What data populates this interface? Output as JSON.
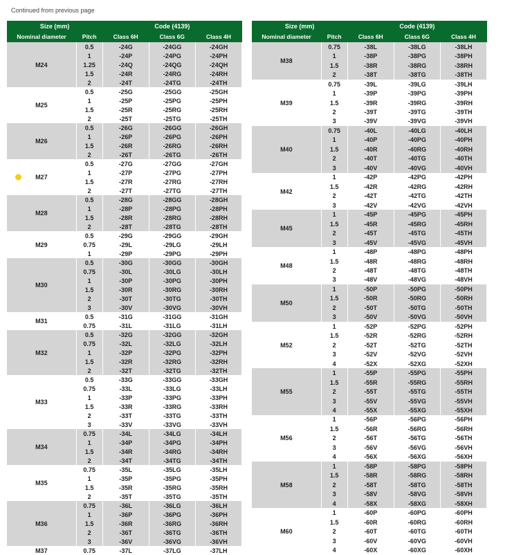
{
  "continued_text": "Continued from previous page",
  "header": {
    "size_group": "Size (mm)",
    "code_group": "Code (4139)",
    "cols": [
      "Nominal diameter",
      "Pitch",
      "Class 6H",
      "Class 6G",
      "Class 4H"
    ]
  },
  "colors": {
    "header_bg": "#0a6b2f",
    "band_light": "#ffffff",
    "band_dark": "#d4d4d4",
    "highlight_dot": "#f7cc1a"
  },
  "left": [
    {
      "dia": "M24",
      "shade": "dark",
      "rows": [
        {
          "p": "0.5",
          "c": [
            "-24G",
            "-24GG",
            "-24GH"
          ]
        },
        {
          "p": "1",
          "c": [
            "-24P",
            "-24PG",
            "-24PH"
          ]
        },
        {
          "p": "1.25",
          "c": [
            "-24Q",
            "-24QG",
            "-24QH"
          ]
        },
        {
          "p": "1.5",
          "c": [
            "-24R",
            "-24RG",
            "-24RH"
          ]
        },
        {
          "p": "2",
          "c": [
            "-24T",
            "-24TG",
            "-24TH"
          ]
        }
      ]
    },
    {
      "dia": "M25",
      "shade": "light",
      "rows": [
        {
          "p": "0.5",
          "c": [
            "-25G",
            "-25GG",
            "-25GH"
          ]
        },
        {
          "p": "1",
          "c": [
            "-25P",
            "-25PG",
            "-25PH"
          ]
        },
        {
          "p": "1.5",
          "c": [
            "-25R",
            "-25RG",
            "-25RH"
          ]
        },
        {
          "p": "2",
          "c": [
            "-25T",
            "-25TG",
            "-25TH"
          ]
        }
      ]
    },
    {
      "dia": "M26",
      "shade": "dark",
      "rows": [
        {
          "p": "0.5",
          "c": [
            "-26G",
            "-26GG",
            "-26GH"
          ]
        },
        {
          "p": "1",
          "c": [
            "-26P",
            "-26PG",
            "-26PH"
          ]
        },
        {
          "p": "1.5",
          "c": [
            "-26R",
            "-26RG",
            "-26RH"
          ]
        },
        {
          "p": "2",
          "c": [
            "-26T",
            "-26TG",
            "-26TH"
          ]
        }
      ]
    },
    {
      "dia": "M27",
      "shade": "light",
      "dot": true,
      "rows": [
        {
          "p": "0.5",
          "c": [
            "-27G",
            "-27GG",
            "-27GH"
          ]
        },
        {
          "p": "1",
          "c": [
            "-27P",
            "-27PG",
            "-27PH"
          ]
        },
        {
          "p": "1.5",
          "c": [
            "-27R",
            "-27RG",
            "-27RH"
          ]
        },
        {
          "p": "2",
          "c": [
            "-27T",
            "-27TG",
            "-27TH"
          ]
        }
      ]
    },
    {
      "dia": "M28",
      "shade": "dark",
      "rows": [
        {
          "p": "0.5",
          "c": [
            "-28G",
            "-28GG",
            "-28GH"
          ]
        },
        {
          "p": "1",
          "c": [
            "-28P",
            "-28PG",
            "-28PH"
          ]
        },
        {
          "p": "1.5",
          "c": [
            "-28R",
            "-28RG",
            "-28RH"
          ]
        },
        {
          "p": "2",
          "c": [
            "-28T",
            "-28TG",
            "-28TH"
          ]
        }
      ]
    },
    {
      "dia": "M29",
      "shade": "light",
      "rows": [
        {
          "p": "0.5",
          "c": [
            "-29G",
            "-29GG",
            "-29GH"
          ]
        },
        {
          "p": "0.75",
          "c": [
            "-29L",
            "-29LG",
            "-29LH"
          ]
        },
        {
          "p": "1",
          "c": [
            "-29P",
            "-29PG",
            "-29PH"
          ]
        }
      ]
    },
    {
      "dia": "M30",
      "shade": "dark",
      "rows": [
        {
          "p": "0.5",
          "c": [
            "-30G",
            "-30GG",
            "-30GH"
          ]
        },
        {
          "p": "0.75",
          "c": [
            "-30L",
            "-30LG",
            "-30LH"
          ]
        },
        {
          "p": "1",
          "c": [
            "-30P",
            "-30PG",
            "-30PH"
          ]
        },
        {
          "p": "1.5",
          "c": [
            "-30R",
            "-30RG",
            "-30RH"
          ]
        },
        {
          "p": "2",
          "c": [
            "-30T",
            "-30TG",
            "-30TH"
          ]
        },
        {
          "p": "3",
          "c": [
            "-30V",
            "-30VG",
            "-30VH"
          ]
        }
      ]
    },
    {
      "dia": "M31",
      "shade": "light",
      "rows": [
        {
          "p": "0.5",
          "c": [
            "-31G",
            "-31GG",
            "-31GH"
          ]
        },
        {
          "p": "0.75",
          "c": [
            "-31L",
            "-31LG",
            "-31LH"
          ]
        }
      ]
    },
    {
      "dia": "M32",
      "shade": "dark",
      "rows": [
        {
          "p": "0.5",
          "c": [
            "-32G",
            "-32GG",
            "-32GH"
          ]
        },
        {
          "p": "0.75",
          "c": [
            "-32L",
            "-32LG",
            "-32LH"
          ]
        },
        {
          "p": "1",
          "c": [
            "-32P",
            "-32PG",
            "-32PH"
          ]
        },
        {
          "p": "1.5",
          "c": [
            "-32R",
            "-32RG",
            "-32RH"
          ]
        },
        {
          "p": "2",
          "c": [
            "-32T",
            "-32TG",
            "-32TH"
          ]
        }
      ]
    },
    {
      "dia": "M33",
      "shade": "light",
      "rows": [
        {
          "p": "0.5",
          "c": [
            "-33G",
            "-33GG",
            "-33GH"
          ]
        },
        {
          "p": "0.75",
          "c": [
            "-33L",
            "-33LG",
            "-33LH"
          ]
        },
        {
          "p": "1",
          "c": [
            "-33P",
            "-33PG",
            "-33PH"
          ]
        },
        {
          "p": "1.5",
          "c": [
            "-33R",
            "-33RG",
            "-33RH"
          ]
        },
        {
          "p": "2",
          "c": [
            "-33T",
            "-33TG",
            "-33TH"
          ]
        },
        {
          "p": "3",
          "c": [
            "-33V",
            "-33VG",
            "-33VH"
          ]
        }
      ]
    },
    {
      "dia": "M34",
      "shade": "dark",
      "rows": [
        {
          "p": "0.75",
          "c": [
            "-34L",
            "-34LG",
            "-34LH"
          ]
        },
        {
          "p": "1",
          "c": [
            "-34P",
            "-34PG",
            "-34PH"
          ]
        },
        {
          "p": "1.5",
          "c": [
            "-34R",
            "-34RG",
            "-34RH"
          ]
        },
        {
          "p": "2",
          "c": [
            "-34T",
            "-34TG",
            "-34TH"
          ]
        }
      ]
    },
    {
      "dia": "M35",
      "shade": "light",
      "rows": [
        {
          "p": "0.75",
          "c": [
            "-35L",
            "-35LG",
            "-35LH"
          ]
        },
        {
          "p": "1",
          "c": [
            "-35P",
            "-35PG",
            "-35PH"
          ]
        },
        {
          "p": "1.5",
          "c": [
            "-35R",
            "-35RG",
            "-35RH"
          ]
        },
        {
          "p": "2",
          "c": [
            "-35T",
            "-35TG",
            "-35TH"
          ]
        }
      ]
    },
    {
      "dia": "M36",
      "shade": "dark",
      "rows": [
        {
          "p": "0.75",
          "c": [
            "-36L",
            "-36LG",
            "-36LH"
          ]
        },
        {
          "p": "1",
          "c": [
            "-36P",
            "-36PG",
            "-36PH"
          ]
        },
        {
          "p": "1.5",
          "c": [
            "-36R",
            "-36RG",
            "-36RH"
          ]
        },
        {
          "p": "2",
          "c": [
            "-36T",
            "-36TG",
            "-36TH"
          ]
        },
        {
          "p": "3",
          "c": [
            "-36V",
            "-36VG",
            "-36VH"
          ]
        }
      ]
    },
    {
      "dia": "M37",
      "shade": "light",
      "rows": [
        {
          "p": "0.75",
          "c": [
            "-37L",
            "-37LG",
            "-37LH"
          ]
        }
      ]
    }
  ],
  "right": [
    {
      "dia": "M38",
      "shade": "dark",
      "rows": [
        {
          "p": "0.75",
          "c": [
            "-38L",
            "-38LG",
            "-38LH"
          ]
        },
        {
          "p": "1",
          "c": [
            "-38P",
            "-38PG",
            "-38PH"
          ]
        },
        {
          "p": "1.5",
          "c": [
            "-38R",
            "-38RG",
            "-38RH"
          ]
        },
        {
          "p": "2",
          "c": [
            "-38T",
            "-38TG",
            "-38TH"
          ]
        }
      ]
    },
    {
      "dia": "M39",
      "shade": "light",
      "rows": [
        {
          "p": "0.75",
          "c": [
            "-39L",
            "-39LG",
            "-39LH"
          ]
        },
        {
          "p": "1",
          "c": [
            "-39P",
            "-39PG",
            "-39PH"
          ]
        },
        {
          "p": "1.5",
          "c": [
            "-39R",
            "-39RG",
            "-39RH"
          ]
        },
        {
          "p": "2",
          "c": [
            "-39T",
            "-39TG",
            "-39TH"
          ]
        },
        {
          "p": "3",
          "c": [
            "-39V",
            "-39VG",
            "-39VH"
          ]
        }
      ]
    },
    {
      "dia": "M40",
      "shade": "dark",
      "rows": [
        {
          "p": "0.75",
          "c": [
            "-40L",
            "-40LG",
            "-40LH"
          ]
        },
        {
          "p": "1",
          "c": [
            "-40P",
            "-40PG",
            "-40PH"
          ]
        },
        {
          "p": "1.5",
          "c": [
            "-40R",
            "-40RG",
            "-40RH"
          ]
        },
        {
          "p": "2",
          "c": [
            "-40T",
            "-40TG",
            "-40TH"
          ]
        },
        {
          "p": "3",
          "c": [
            "-40V",
            "-40VG",
            "-40VH"
          ]
        }
      ]
    },
    {
      "dia": "M42",
      "shade": "light",
      "rows": [
        {
          "p": "1",
          "c": [
            "-42P",
            "-42PG",
            "-42PH"
          ]
        },
        {
          "p": "1.5",
          "c": [
            "-42R",
            "-42RG",
            "-42RH"
          ]
        },
        {
          "p": "2",
          "c": [
            "-42T",
            "-42TG",
            "-42TH"
          ]
        },
        {
          "p": "3",
          "c": [
            "-42V",
            "-42VG",
            "-42VH"
          ]
        }
      ]
    },
    {
      "dia": "M45",
      "shade": "dark",
      "rows": [
        {
          "p": "1",
          "c": [
            "-45P",
            "-45PG",
            "-45PH"
          ]
        },
        {
          "p": "1.5",
          "c": [
            "-45R",
            "-45RG",
            "-45RH"
          ]
        },
        {
          "p": "2",
          "c": [
            "-45T",
            "-45TG",
            "-45TH"
          ]
        },
        {
          "p": "3",
          "c": [
            "-45V",
            "-45VG",
            "-45VH"
          ]
        }
      ]
    },
    {
      "dia": "M48",
      "shade": "light",
      "rows": [
        {
          "p": "1",
          "c": [
            "-48P",
            "-48PG",
            "-48PH"
          ]
        },
        {
          "p": "1.5",
          "c": [
            "-48R",
            "-48RG",
            "-48RH"
          ]
        },
        {
          "p": "2",
          "c": [
            "-48T",
            "-48TG",
            "-48TH"
          ]
        },
        {
          "p": "3",
          "c": [
            "-48V",
            "-48VG",
            "-48VH"
          ]
        }
      ]
    },
    {
      "dia": "M50",
      "shade": "dark",
      "rows": [
        {
          "p": "1",
          "c": [
            "-50P",
            "-50PG",
            "-50PH"
          ]
        },
        {
          "p": "1.5",
          "c": [
            "-50R",
            "-50RG",
            "-50RH"
          ]
        },
        {
          "p": "2",
          "c": [
            "-50T",
            "-50TG",
            "-50TH"
          ]
        },
        {
          "p": "3",
          "c": [
            "-50V",
            "-50VG",
            "-50VH"
          ]
        }
      ]
    },
    {
      "dia": "M52",
      "shade": "light",
      "rows": [
        {
          "p": "1",
          "c": [
            "-52P",
            "-52PG",
            "-52PH"
          ]
        },
        {
          "p": "1.5",
          "c": [
            "-52R",
            "-52RG",
            "-52RH"
          ]
        },
        {
          "p": "2",
          "c": [
            "-52T",
            "-52TG",
            "-52TH"
          ]
        },
        {
          "p": "3",
          "c": [
            "-52V",
            "-52VG",
            "-52VH"
          ]
        },
        {
          "p": "4",
          "c": [
            "-52X",
            "-52XG",
            "-52XH"
          ]
        }
      ]
    },
    {
      "dia": "M55",
      "shade": "dark",
      "rows": [
        {
          "p": "1",
          "c": [
            "-55P",
            "-55PG",
            "-55PH"
          ]
        },
        {
          "p": "1.5",
          "c": [
            "-55R",
            "-55RG",
            "-55RH"
          ]
        },
        {
          "p": "2",
          "c": [
            "-55T",
            "-55TG",
            "-55TH"
          ]
        },
        {
          "p": "3",
          "c": [
            "-55V",
            "-55VG",
            "-55VH"
          ]
        },
        {
          "p": "4",
          "c": [
            "-55X",
            "-55XG",
            "-55XH"
          ]
        }
      ]
    },
    {
      "dia": "M56",
      "shade": "light",
      "rows": [
        {
          "p": "1",
          "c": [
            "-56P",
            "-56PG",
            "-56PH"
          ]
        },
        {
          "p": "1.5",
          "c": [
            "-56R",
            "-56RG",
            "-56RH"
          ]
        },
        {
          "p": "2",
          "c": [
            "-56T",
            "-56TG",
            "-56TH"
          ]
        },
        {
          "p": "3",
          "c": [
            "-56V",
            "-56VG",
            "-56VH"
          ]
        },
        {
          "p": "4",
          "c": [
            "-56X",
            "-56XG",
            "-56XH"
          ]
        }
      ]
    },
    {
      "dia": "M58",
      "shade": "dark",
      "rows": [
        {
          "p": "1",
          "c": [
            "-58P",
            "-58PG",
            "-58PH"
          ]
        },
        {
          "p": "1.5",
          "c": [
            "-58R",
            "-58RG",
            "-58RH"
          ]
        },
        {
          "p": "2",
          "c": [
            "-58T",
            "-58TG",
            "-58TH"
          ]
        },
        {
          "p": "3",
          "c": [
            "-58V",
            "-58VG",
            "-58VH"
          ]
        },
        {
          "p": "4",
          "c": [
            "-58X",
            "-58XG",
            "-58XH"
          ]
        }
      ]
    },
    {
      "dia": "M60",
      "shade": "light",
      "rows": [
        {
          "p": "1",
          "c": [
            "-60P",
            "-60PG",
            "-60PH"
          ]
        },
        {
          "p": "1.5",
          "c": [
            "-60R",
            "-60RG",
            "-60RH"
          ]
        },
        {
          "p": "2",
          "c": [
            "-60T",
            "-60TG",
            "-60TH"
          ]
        },
        {
          "p": "3",
          "c": [
            "-60V",
            "-60VG",
            "-60VH"
          ]
        },
        {
          "p": "4",
          "c": [
            "-60X",
            "-60XG",
            "-60XH"
          ]
        }
      ]
    }
  ]
}
